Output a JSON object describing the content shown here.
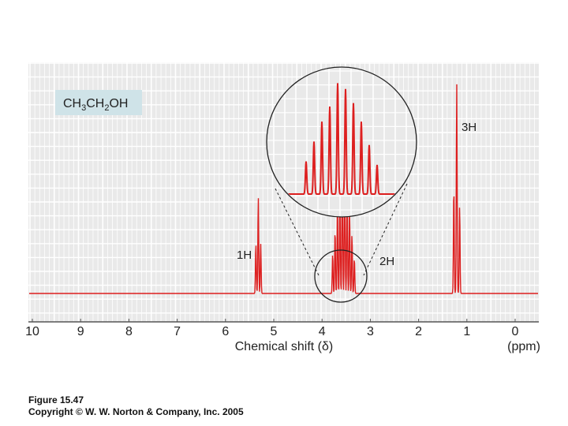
{
  "chart_data": {
    "type": "line",
    "compound": {
      "prefix": "CH",
      "sub1": "3",
      "mid": "CH",
      "sub2": "2",
      "suffix": "OH"
    },
    "xlabel": "Chemical shift (δ)",
    "xunit": "(ppm)",
    "xlim": [
      10,
      0
    ],
    "x_reversed": true,
    "ticks": [
      "10",
      "9",
      "8",
      "7",
      "6",
      "5",
      "4",
      "3",
      "2",
      "1",
      "0"
    ],
    "grid": true,
    "series": [
      {
        "peaks": [
          {
            "group": "1H",
            "shifts": [
              5.37,
              5.32,
              5.27
            ],
            "heights": [
              0.35,
              0.68,
              0.35
            ]
          },
          {
            "group": "2H",
            "shifts": [
              3.78,
              3.73,
              3.68,
              3.63,
              3.58,
              3.53,
              3.48,
              3.43,
              3.38,
              3.33
            ],
            "heights": [
              0.28,
              0.45,
              0.62,
              0.75,
              0.95,
              0.9,
              0.78,
              0.62,
              0.42,
              0.25
            ]
          },
          {
            "group": "3H",
            "shifts": [
              1.27,
              1.21,
              1.15
            ],
            "heights": [
              0.75,
              1.48,
              0.62
            ]
          }
        ]
      }
    ],
    "annotations": [
      "1H",
      "2H",
      "3H"
    ]
  },
  "caption": {
    "figure": "Figure 15.47",
    "copyright": "Copyright © W. W. Norton & Company, Inc. 2005"
  },
  "colors": {
    "spectrum": "#dd1f1f",
    "plot_bg": "#e9e9e9",
    "grid": "#ffffff",
    "label_box": "#cfe3e8",
    "axis": "#555555"
  }
}
